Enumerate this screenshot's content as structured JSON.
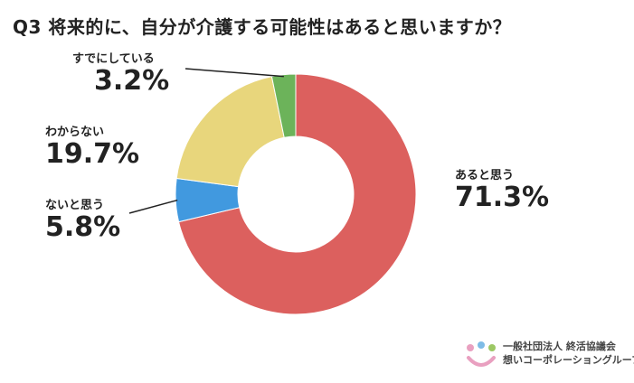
{
  "chart_data": {
    "type": "pie",
    "title": "Q3 将来的に、自分が介護する可能性はあると思いますか？",
    "categories": [
      "あると思う",
      "ないと思う",
      "わからない",
      "すでにしている"
    ],
    "values": [
      71.3,
      5.8,
      19.7,
      3.2
    ],
    "value_labels": [
      "71.3%",
      "5.8%",
      "19.7%",
      "3.2%"
    ],
    "colors": [
      "#dc605e",
      "#4199df",
      "#e8d67c",
      "#6cb35a"
    ],
    "donut": true,
    "start_angle": "12 o'clock, clockwise, あると思う first"
  },
  "logo": {
    "line1": "一般社団法人 終活協議会",
    "line2": "想いコーポレーショングループ",
    "colors": [
      "#e9a0c0",
      "#7ebce6",
      "#9cc864"
    ]
  }
}
